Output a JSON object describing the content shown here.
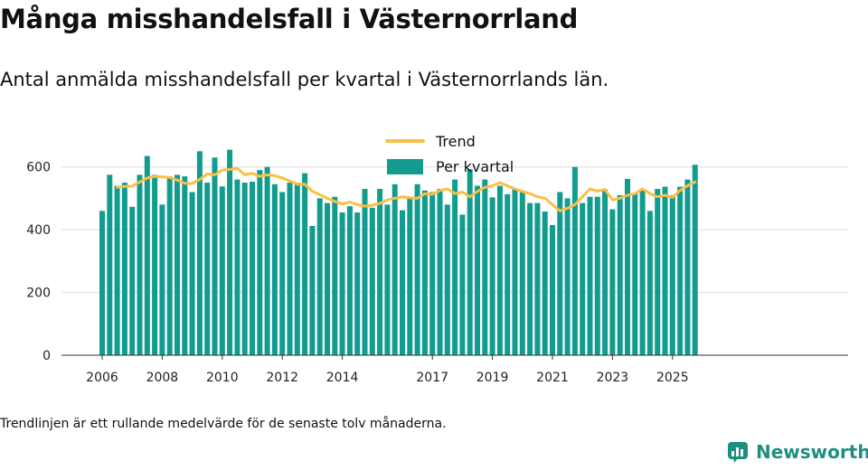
{
  "header": {
    "title": "Många misshandelsfall i Västernorrland",
    "subtitle": "Antal anmälda misshandelsfall per kvartal i Västernorrlands län."
  },
  "footnote": "Trendlinjen är ett rullande medelvärde för de senaste tolv månaderna.",
  "brand": {
    "name": "Newsworthy",
    "icon": "newsworthy-logo-icon",
    "color": "#1e8f7f"
  },
  "chart_data": {
    "type": "bar",
    "title": "Många misshandelsfall i Västernorrland",
    "xlabel": "",
    "ylabel": "",
    "ylim": [
      0,
      700
    ],
    "yticks": [
      0,
      200,
      400,
      600
    ],
    "xticks": [
      {
        "label": "2006",
        "index": 0
      },
      {
        "label": "2008",
        "index": 8
      },
      {
        "label": "2010",
        "index": 16
      },
      {
        "label": "2012",
        "index": 24
      },
      {
        "label": "2014",
        "index": 32
      },
      {
        "label": "2017",
        "index": 44
      },
      {
        "label": "2019",
        "index": 52
      },
      {
        "label": "2021",
        "index": 60
      },
      {
        "label": "2023",
        "index": 68
      },
      {
        "label": "2025",
        "index": 76
      }
    ],
    "grid": true,
    "legend_position": "top-center",
    "colors": {
      "bars": "#119c8f",
      "trend": "#fbbf45",
      "grid": "#dddddd",
      "axis": "#333333"
    },
    "series": [
      {
        "name": "Per kvartal",
        "type": "bar",
        "values": [
          460,
          575,
          540,
          550,
          473,
          575,
          635,
          575,
          480,
          570,
          575,
          570,
          520,
          650,
          550,
          630,
          538,
          655,
          560,
          550,
          553,
          590,
          600,
          545,
          520,
          550,
          550,
          580,
          412,
          500,
          485,
          505,
          455,
          475,
          455,
          530,
          470,
          530,
          480,
          545,
          462,
          505,
          545,
          525,
          520,
          530,
          480,
          560,
          448,
          593,
          540,
          560,
          503,
          540,
          513,
          530,
          520,
          485,
          485,
          458,
          415,
          520,
          500,
          600,
          485,
          505,
          505,
          528,
          465,
          510,
          562,
          515,
          530,
          460,
          530,
          537,
          510,
          537,
          560,
          607
        ]
      },
      {
        "name": "Trend",
        "type": "line",
        "values": [
          null,
          null,
          535,
          538,
          539,
          552,
          565,
          570,
          568,
          567,
          558,
          548,
          547,
          560,
          578,
          575,
          590,
          592,
          596,
          575,
          580,
          570,
          575,
          572,
          565,
          555,
          545,
          545,
          522,
          512,
          500,
          490,
          482,
          488,
          480,
          475,
          478,
          484,
          495,
          500,
          505,
          502,
          500,
          515,
          513,
          525,
          530,
          515,
          520,
          505,
          522,
          535,
          540,
          550,
          540,
          530,
          522,
          515,
          505,
          500,
          480,
          460,
          468,
          480,
          505,
          530,
          523,
          528,
          495,
          500,
          510,
          515,
          530,
          515,
          505,
          510,
          503,
          525,
          540,
          552
        ]
      }
    ],
    "legend": [
      {
        "label": "Trend",
        "kind": "line"
      },
      {
        "label": "Per kvartal",
        "kind": "bar"
      }
    ]
  }
}
